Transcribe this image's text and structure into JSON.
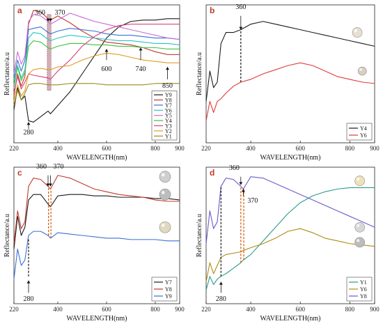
{
  "chart_data": [
    {
      "type": "line",
      "panel_label": "a",
      "xlabel": "WAVELENGTH(nm)",
      "ylabel": "Reflectance/a.u",
      "xlim": [
        220,
        900
      ],
      "x_ticks": [
        220,
        400,
        600,
        800,
        900
      ],
      "ylim": [
        0,
        1
      ],
      "y_ticks_shown": false,
      "legend_position": "bottom-right",
      "annotations": [
        "360",
        "370",
        "600",
        "740",
        "850",
        "280"
      ],
      "series": [
        {
          "name": "Y9",
          "color": "#1a1a1a",
          "x": [
            220,
            235,
            250,
            265,
            280,
            300,
            330,
            360,
            370,
            400,
            450,
            500,
            550,
            600,
            650,
            700,
            750,
            800,
            850,
            900
          ],
          "y": [
            0.24,
            0.4,
            0.31,
            0.34,
            0.16,
            0.15,
            0.19,
            0.23,
            0.21,
            0.27,
            0.37,
            0.5,
            0.63,
            0.76,
            0.84,
            0.88,
            0.89,
            0.89,
            0.9,
            0.9
          ]
        },
        {
          "name": "Y8",
          "color": "#c0392b",
          "x": [
            220,
            235,
            250,
            265,
            280,
            300,
            330,
            360,
            370,
            400,
            450,
            500,
            550,
            600,
            650,
            700,
            750,
            800,
            850,
            900
          ],
          "y": [
            0.34,
            0.5,
            0.41,
            0.48,
            0.86,
            0.96,
            0.95,
            0.9,
            0.89,
            0.92,
            0.87,
            0.81,
            0.76,
            0.73,
            0.72,
            0.71,
            0.69,
            0.66,
            0.64,
            0.64
          ]
        },
        {
          "name": "Y7",
          "color": "#3a6fd8",
          "x": [
            220,
            235,
            250,
            265,
            280,
            300,
            330,
            360,
            370,
            400,
            450,
            500,
            550,
            600,
            650,
            700,
            750,
            800,
            850,
            900
          ],
          "y": [
            0.46,
            0.6,
            0.52,
            0.6,
            0.82,
            0.83,
            0.84,
            0.8,
            0.79,
            0.81,
            0.83,
            0.82,
            0.81,
            0.79,
            0.78,
            0.78,
            0.77,
            0.76,
            0.76,
            0.75
          ]
        },
        {
          "name": "Y6",
          "color": "#27c4c4",
          "x": [
            220,
            235,
            250,
            265,
            280,
            300,
            330,
            360,
            370,
            400,
            450,
            500,
            550,
            600,
            650,
            700,
            750,
            800,
            850,
            900
          ],
          "y": [
            0.42,
            0.56,
            0.47,
            0.53,
            0.76,
            0.8,
            0.79,
            0.75,
            0.74,
            0.76,
            0.78,
            0.77,
            0.76,
            0.75,
            0.74,
            0.74,
            0.73,
            0.72,
            0.72,
            0.71
          ]
        },
        {
          "name": "Y5",
          "color": "#c86bd8",
          "x": [
            220,
            235,
            250,
            265,
            280,
            300,
            330,
            360,
            370,
            400,
            450,
            500,
            550,
            600,
            650,
            700,
            750,
            800,
            850,
            900
          ],
          "y": [
            0.5,
            0.66,
            0.57,
            0.63,
            0.88,
            0.93,
            0.92,
            0.88,
            0.86,
            0.89,
            0.94,
            0.91,
            0.88,
            0.86,
            0.84,
            0.82,
            0.8,
            0.78,
            0.76,
            0.75
          ]
        },
        {
          "name": "Y4",
          "color": "#3ac23a",
          "x": [
            220,
            235,
            250,
            265,
            280,
            300,
            330,
            360,
            370,
            400,
            450,
            500,
            550,
            600,
            650,
            700,
            750,
            800,
            850,
            900
          ],
          "y": [
            0.4,
            0.55,
            0.45,
            0.51,
            0.7,
            0.74,
            0.73,
            0.69,
            0.68,
            0.7,
            0.72,
            0.72,
            0.71,
            0.71,
            0.7,
            0.7,
            0.69,
            0.69,
            0.68,
            0.68
          ]
        },
        {
          "name": "Y3",
          "color": "#d6417f",
          "x": [
            220,
            235,
            250,
            265,
            280,
            300,
            330,
            360,
            370,
            400,
            450,
            500,
            550,
            600,
            650,
            700,
            750,
            800,
            850,
            900
          ],
          "y": [
            0.36,
            0.48,
            0.39,
            0.44,
            0.5,
            0.49,
            0.48,
            0.47,
            0.46,
            0.52,
            0.6,
            0.7,
            0.77,
            0.82,
            0.85,
            0.86,
            0.86,
            0.86,
            0.86,
            0.86
          ]
        },
        {
          "name": "Y2",
          "color": "#e39b27",
          "x": [
            220,
            235,
            250,
            265,
            280,
            300,
            330,
            360,
            370,
            400,
            450,
            500,
            550,
            600,
            650,
            700,
            750,
            800,
            850,
            900
          ],
          "y": [
            0.3,
            0.42,
            0.34,
            0.38,
            0.5,
            0.53,
            0.54,
            0.53,
            0.53,
            0.55,
            0.56,
            0.6,
            0.63,
            0.65,
            0.64,
            0.62,
            0.6,
            0.59,
            0.58,
            0.58
          ]
        },
        {
          "name": "Y1",
          "color": "#9a8a1c",
          "x": [
            220,
            235,
            250,
            265,
            280,
            300,
            330,
            360,
            370,
            400,
            450,
            500,
            550,
            600,
            650,
            700,
            750,
            800,
            850,
            900
          ],
          "y": [
            0.27,
            0.38,
            0.31,
            0.36,
            0.42,
            0.43,
            0.43,
            0.42,
            0.42,
            0.42,
            0.43,
            0.43,
            0.43,
            0.42,
            0.42,
            0.42,
            0.42,
            0.43,
            0.43,
            0.43
          ]
        }
      ]
    },
    {
      "type": "line",
      "panel_label": "b",
      "xlabel": "WAVELENGTH(nm)",
      "ylabel": "Reflectance/a.u",
      "xlim": [
        220,
        900
      ],
      "x_ticks": [
        220,
        400,
        600,
        800,
        900
      ],
      "ylim": [
        0,
        1
      ],
      "y_ticks_shown": false,
      "legend_position": "bottom-right",
      "annotations": [
        "360"
      ],
      "series": [
        {
          "name": "Y4",
          "color": "#1a1a1a",
          "x": [
            220,
            235,
            250,
            265,
            280,
            300,
            330,
            360,
            400,
            450,
            500,
            550,
            600,
            650,
            700,
            750,
            800,
            850,
            900
          ],
          "y": [
            0.3,
            0.52,
            0.4,
            0.44,
            0.72,
            0.8,
            0.8,
            0.82,
            0.86,
            0.88,
            0.86,
            0.84,
            0.82,
            0.8,
            0.78,
            0.76,
            0.74,
            0.72,
            0.7
          ]
        },
        {
          "name": "Y6",
          "color": "#e03a3a",
          "x": [
            220,
            235,
            250,
            265,
            280,
            300,
            330,
            360,
            400,
            450,
            500,
            550,
            600,
            650,
            700,
            750,
            800,
            850,
            900
          ],
          "y": [
            0.16,
            0.3,
            0.22,
            0.3,
            0.32,
            0.36,
            0.41,
            0.44,
            0.46,
            0.5,
            0.53,
            0.56,
            0.58,
            0.56,
            0.52,
            0.48,
            0.46,
            0.44,
            0.43
          ]
        }
      ]
    },
    {
      "type": "line",
      "panel_label": "c",
      "xlabel": "WAVELENGTH(nm)",
      "ylabel": "Reflectance/a.u",
      "xlim": [
        220,
        900
      ],
      "x_ticks": [
        220,
        400,
        600,
        800,
        900
      ],
      "ylim": [
        0,
        1
      ],
      "y_ticks_shown": false,
      "legend_position": "bottom-right",
      "annotations": [
        "360",
        "370",
        "280"
      ],
      "series": [
        {
          "name": "Y7",
          "color": "#1a1a1a",
          "x": [
            220,
            235,
            250,
            265,
            280,
            300,
            330,
            360,
            370,
            400,
            450,
            500,
            550,
            600,
            650,
            700,
            750,
            800,
            850,
            900
          ],
          "y": [
            0.4,
            0.64,
            0.5,
            0.56,
            0.76,
            0.8,
            0.8,
            0.73,
            0.71,
            0.79,
            0.8,
            0.8,
            0.79,
            0.79,
            0.78,
            0.78,
            0.78,
            0.77,
            0.77,
            0.76
          ]
        },
        {
          "name": "Y8",
          "color": "#c0392b",
          "x": [
            220,
            235,
            250,
            265,
            280,
            300,
            330,
            360,
            370,
            400,
            450,
            500,
            550,
            600,
            650,
            700,
            750,
            800,
            850,
            900
          ],
          "y": [
            0.44,
            0.68,
            0.55,
            0.6,
            0.86,
            0.92,
            0.91,
            0.86,
            0.84,
            0.94,
            0.92,
            0.88,
            0.84,
            0.82,
            0.8,
            0.79,
            0.78,
            0.76,
            0.75,
            0.75
          ]
        },
        {
          "name": "Y9",
          "color": "#3a6fd8",
          "x": [
            220,
            235,
            250,
            265,
            280,
            300,
            330,
            360,
            370,
            400,
            450,
            500,
            550,
            600,
            650,
            700,
            750,
            800,
            850,
            900
          ],
          "y": [
            0.18,
            0.4,
            0.28,
            0.32,
            0.5,
            0.53,
            0.53,
            0.5,
            0.48,
            0.52,
            0.51,
            0.5,
            0.49,
            0.48,
            0.48,
            0.47,
            0.47,
            0.47,
            0.46,
            0.46
          ]
        }
      ]
    },
    {
      "type": "line",
      "panel_label": "d",
      "xlabel": "WAVELENGTH(nm)",
      "ylabel": "Reflectance/a.u",
      "xlim": [
        220,
        900
      ],
      "x_ticks": [
        220,
        400,
        600,
        800,
        900
      ],
      "ylim": [
        0,
        1
      ],
      "y_ticks_shown": false,
      "legend_position": "bottom-right",
      "annotations": [
        "360",
        "370",
        "280"
      ],
      "series": [
        {
          "name": "Y1",
          "color": "#2a9a8a",
          "x": [
            220,
            235,
            250,
            265,
            280,
            300,
            330,
            360,
            370,
            400,
            450,
            500,
            550,
            600,
            650,
            700,
            750,
            800,
            850,
            900
          ],
          "y": [
            0.1,
            0.2,
            0.14,
            0.18,
            0.2,
            0.22,
            0.26,
            0.3,
            0.32,
            0.36,
            0.46,
            0.56,
            0.66,
            0.74,
            0.79,
            0.82,
            0.84,
            0.85,
            0.85,
            0.85
          ]
        },
        {
          "name": "Y6",
          "color": "#b08a10",
          "x": [
            220,
            235,
            250,
            265,
            280,
            300,
            330,
            360,
            370,
            400,
            450,
            500,
            550,
            600,
            650,
            700,
            750,
            800,
            850,
            900
          ],
          "y": [
            0.16,
            0.3,
            0.22,
            0.28,
            0.34,
            0.36,
            0.37,
            0.38,
            0.39,
            0.41,
            0.44,
            0.48,
            0.53,
            0.55,
            0.52,
            0.48,
            0.46,
            0.44,
            0.43,
            0.42
          ]
        },
        {
          "name": "Y8",
          "color": "#6a5acd",
          "x": [
            220,
            235,
            250,
            265,
            280,
            300,
            330,
            360,
            370,
            400,
            450,
            500,
            550,
            600,
            650,
            700,
            750,
            800,
            850,
            900
          ],
          "y": [
            0.44,
            0.68,
            0.55,
            0.6,
            0.86,
            0.92,
            0.91,
            0.86,
            0.84,
            0.93,
            0.92,
            0.88,
            0.84,
            0.8,
            0.76,
            0.72,
            0.68,
            0.64,
            0.6,
            0.56
          ]
        }
      ]
    }
  ]
}
